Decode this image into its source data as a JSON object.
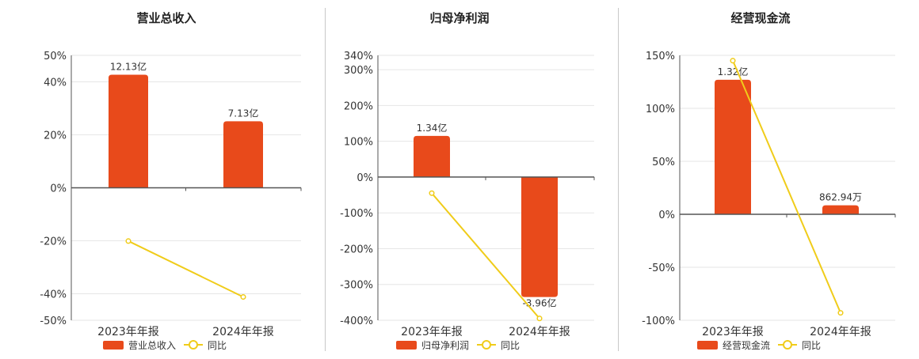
{
  "colors": {
    "bar": "#e84a1b",
    "line": "#f0cc1a",
    "axis": "#555555",
    "grid": "#e6e6e6",
    "text": "#333333",
    "title": "#222222"
  },
  "chart_data": [
    {
      "type": "bar",
      "title": "营业总收入",
      "categories": [
        "2023年年报",
        "2024年年报"
      ],
      "ylim": [
        -50,
        50
      ],
      "ticks": [
        50,
        40,
        20,
        0,
        -20,
        -40,
        -50
      ],
      "tick_labels": [
        "50%",
        "40%",
        "20%",
        "0%",
        "-20%",
        "-40%",
        "-50%"
      ],
      "series": [
        {
          "name": "营业总收入",
          "kind": "bar",
          "values": [
            42.7,
            25.1
          ],
          "labels": [
            "12.13亿",
            "7.13亿"
          ]
        },
        {
          "name": "同比",
          "kind": "line",
          "values": [
            -20.1,
            -41.2
          ]
        }
      ],
      "legend": "bottom-center",
      "grid": true
    },
    {
      "type": "bar",
      "title": "归母净利润",
      "categories": [
        "2023年年报",
        "2024年年报"
      ],
      "ylim": [
        -400,
        340
      ],
      "ticks": [
        340,
        300,
        200,
        100,
        0,
        -100,
        -200,
        -300,
        -400
      ],
      "tick_labels": [
        "340%",
        "300%",
        "200%",
        "100%",
        "0%",
        "-100%",
        "-200%",
        "-300%",
        "-400%"
      ],
      "series": [
        {
          "name": "归母净利润",
          "kind": "bar",
          "values": [
            115,
            -335
          ],
          "labels": [
            "1.34亿",
            "-3.96亿"
          ]
        },
        {
          "name": "同比",
          "kind": "line",
          "values": [
            -45,
            -395
          ]
        }
      ],
      "legend": "bottom-center",
      "grid": true
    },
    {
      "type": "bar",
      "title": "经营现金流",
      "categories": [
        "2023年年报",
        "2024年年报"
      ],
      "ylim": [
        -100,
        150
      ],
      "ticks": [
        150,
        100,
        50,
        0,
        -50,
        -100
      ],
      "tick_labels": [
        "150%",
        "100%",
        "50%",
        "0%",
        "-50%",
        "-100%"
      ],
      "series": [
        {
          "name": "经营现金流",
          "kind": "bar",
          "values": [
            127,
            8.5
          ],
          "labels": [
            "1.32亿",
            "862.94万"
          ]
        },
        {
          "name": "同比",
          "kind": "line",
          "values": [
            145,
            -93
          ]
        }
      ],
      "legend": "bottom-center",
      "grid": true
    }
  ]
}
